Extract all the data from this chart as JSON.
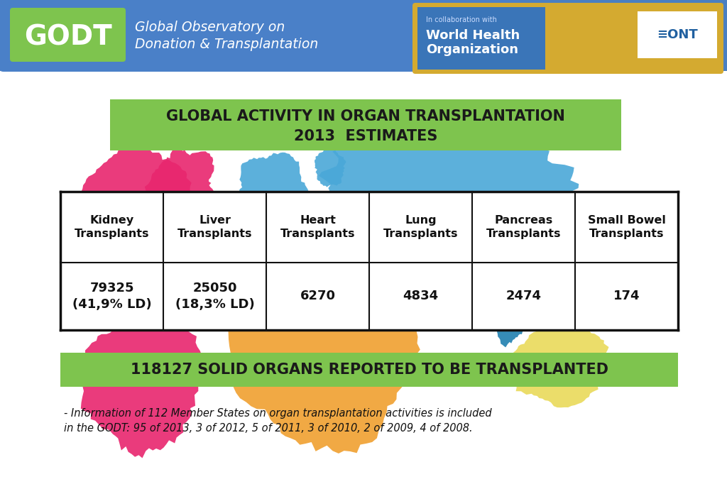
{
  "title_line1": "GLOBAL ACTIVITY IN ORGAN TRANSPLANTATION",
  "title_line2": "2013  ESTIMATES",
  "title_bg_color": "#7ec44e",
  "title_text_color": "#1a1a1a",
  "headers": [
    "Kidney\nTransplants",
    "Liver\nTransplants",
    "Heart\nTransplants",
    "Lung\nTransplants",
    "Pancreas\nTransplants",
    "Small Bowel\nTransplants"
  ],
  "values": [
    "79325\n(41,9% LD)",
    "25050\n(18,3% LD)",
    "6270",
    "4834",
    "2474",
    "174"
  ],
  "table_border_color": "#111111",
  "table_bg_color": "#ffffff",
  "bottom_banner_text": "118127 SOLID ORGANS REPORTED TO BE TRANSPLANTED",
  "bottom_banner_bg": "#7ec44e",
  "bottom_banner_text_color": "#1a1a1a",
  "footnote": "- Information of 112 Member States on organ transplantation activities is included\nin the GODT: 95 of 2013, 3 of 2012, 5 of 2011, 3 of 2010, 2 of 2009, 4 of 2008.",
  "footnote_color": "#111111",
  "bg_color": "#ffffff",
  "header_bg_color": "#4472b8",
  "map_colors": {
    "north_america": "#e8266e",
    "south_america": "#e8266e",
    "europe": "#4aa8d8",
    "asia": "#4aa8d8",
    "africa": "#f0a030",
    "se_asia": "#2080b0",
    "australia": "#e8d850",
    "greenland": "#4aa8d8"
  }
}
